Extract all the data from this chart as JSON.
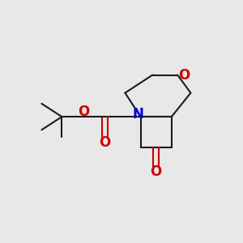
{
  "bg_color": "#e8e8e8",
  "bond_color": "#1a1a1a",
  "N_color": "#0000cc",
  "O_color": "#cc0000",
  "bond_width": 1.5,
  "fig_bg": "#e8e8e8",
  "xlim": [
    0,
    10
  ],
  "ylim": [
    0,
    10
  ]
}
